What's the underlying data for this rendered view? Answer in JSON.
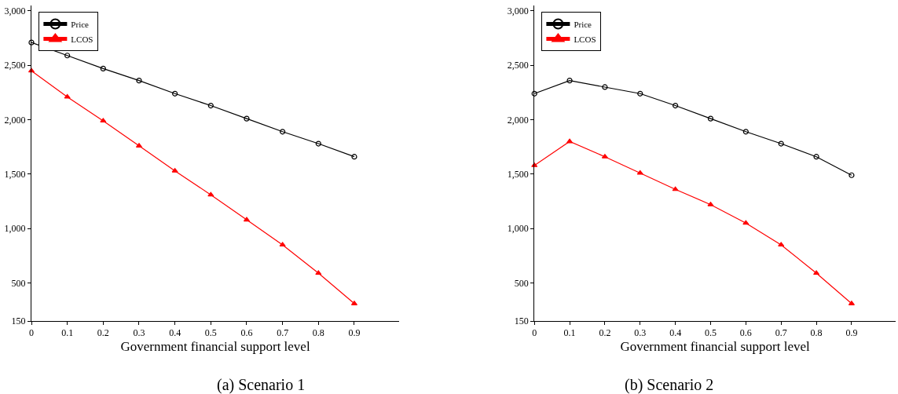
{
  "chart_data": [
    {
      "type": "line",
      "title": "(a) Scenario 1",
      "xlabel": "Government financial support level",
      "x": [
        0,
        0.1,
        0.2,
        0.3,
        0.4,
        0.5,
        0.6,
        0.7,
        0.8,
        0.9
      ],
      "series": [
        {
          "name": "Price",
          "color": "#000000",
          "marker": "circle",
          "values": [
            2710,
            2590,
            2470,
            2360,
            2240,
            2130,
            2010,
            1890,
            1780,
            1660
          ]
        },
        {
          "name": "LCOS",
          "color": "#ff0000",
          "marker": "triangle",
          "values": [
            2450,
            2210,
            1990,
            1760,
            1530,
            1310,
            1080,
            850,
            590,
            310
          ]
        }
      ],
      "xlim": [
        0,
        1.025
      ],
      "xticks": [
        0,
        0.1,
        0.2,
        0.3,
        0.4,
        0.5,
        0.6,
        0.7,
        0.8,
        0.9
      ],
      "ylim": [
        150,
        3050
      ],
      "yticks": [
        150,
        {
          "value": 500,
          "label": "500"
        },
        {
          "value": 1000,
          "label": "1,000"
        },
        {
          "value": 1500,
          "label": "1,500"
        },
        {
          "value": 2000,
          "label": "2,000"
        },
        {
          "value": 2500,
          "label": "2,500"
        },
        {
          "value": 3000,
          "label": "3,000"
        }
      ],
      "legend": "top left",
      "line_style": "solid"
    },
    {
      "type": "line",
      "title": "(b) Scenario 2",
      "xlabel": "Government financial support level",
      "x": [
        0,
        0.1,
        0.2,
        0.3,
        0.4,
        0.5,
        0.6,
        0.7,
        0.8,
        0.9
      ],
      "series": [
        {
          "name": "Price",
          "color": "#000000",
          "marker": "circle",
          "values": [
            2240,
            2360,
            2300,
            2240,
            2130,
            2010,
            1890,
            1780,
            1660,
            1490
          ]
        },
        {
          "name": "LCOS",
          "color": "#ff0000",
          "marker": "triangle",
          "values": [
            1580,
            1800,
            1660,
            1510,
            1360,
            1220,
            1050,
            850,
            590,
            310
          ]
        }
      ],
      "xlim": [
        0,
        1.025
      ],
      "xticks": [
        0,
        0.1,
        0.2,
        0.3,
        0.4,
        0.5,
        0.6,
        0.7,
        0.8,
        0.9
      ],
      "ylim": [
        150,
        3050
      ],
      "yticks": [
        150,
        {
          "value": 500,
          "label": "500"
        },
        {
          "value": 1000,
          "label": "1,000"
        },
        {
          "value": 1500,
          "label": "1,500"
        },
        {
          "value": 2000,
          "label": "2,000"
        },
        {
          "value": 2500,
          "label": "2,500"
        },
        {
          "value": 3000,
          "label": "3,000"
        }
      ],
      "legend": "top left",
      "line_style": "solid"
    }
  ]
}
